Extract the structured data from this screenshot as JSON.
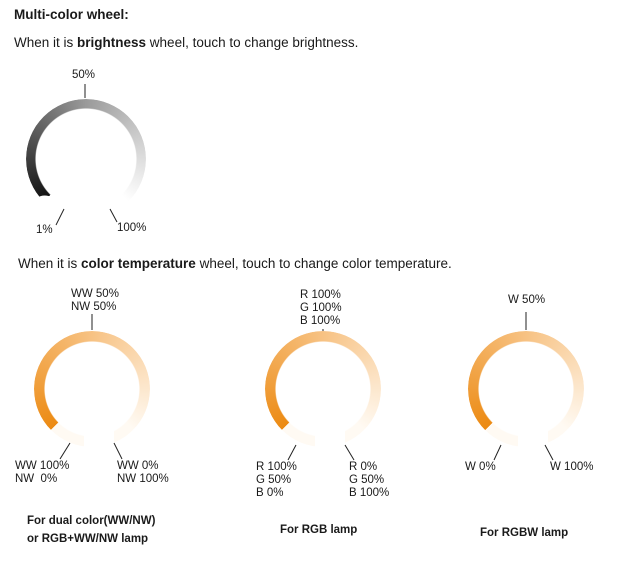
{
  "title": "Multi-color wheel:",
  "brightness_intro": {
    "prefix": "When it is ",
    "bold": "brightness",
    "suffix": " wheel, touch to change brightness."
  },
  "brightness_wheel": {
    "top_label": "50%",
    "left_label": "1%",
    "right_label": "100%",
    "colors": {
      "start": "#111111",
      "middle": "#9a9a9a",
      "end": "#ffffff"
    }
  },
  "color_temp_intro": {
    "prefix": "When it is ",
    "bold": "color temperature",
    "suffix": " wheel, touch to change color temperature."
  },
  "temp_wheels": [
    {
      "top_label": "WW 50%\nNW 50%",
      "left_label": "WW 100%\nNW  0%",
      "right_label": "WW 0%\nNW 100%",
      "caption": "For dual color(WW/NW)\nor RGB+WW/NW lamp"
    },
    {
      "top_label": "R 100%\nG 100%\nB 100%",
      "left_label": "R 100%\nG 50%\nB 0%",
      "right_label": "R 0%\nG 50%\nB 100%",
      "caption": "For RGB lamp"
    },
    {
      "top_label": "W 50%",
      "left_label": "W 0%",
      "right_label": "W 100%",
      "caption": "For RGBW lamp"
    }
  ],
  "temp_colors": {
    "start": "#ec8a12",
    "middle": "#f7c283",
    "end": "#fffaf3"
  }
}
